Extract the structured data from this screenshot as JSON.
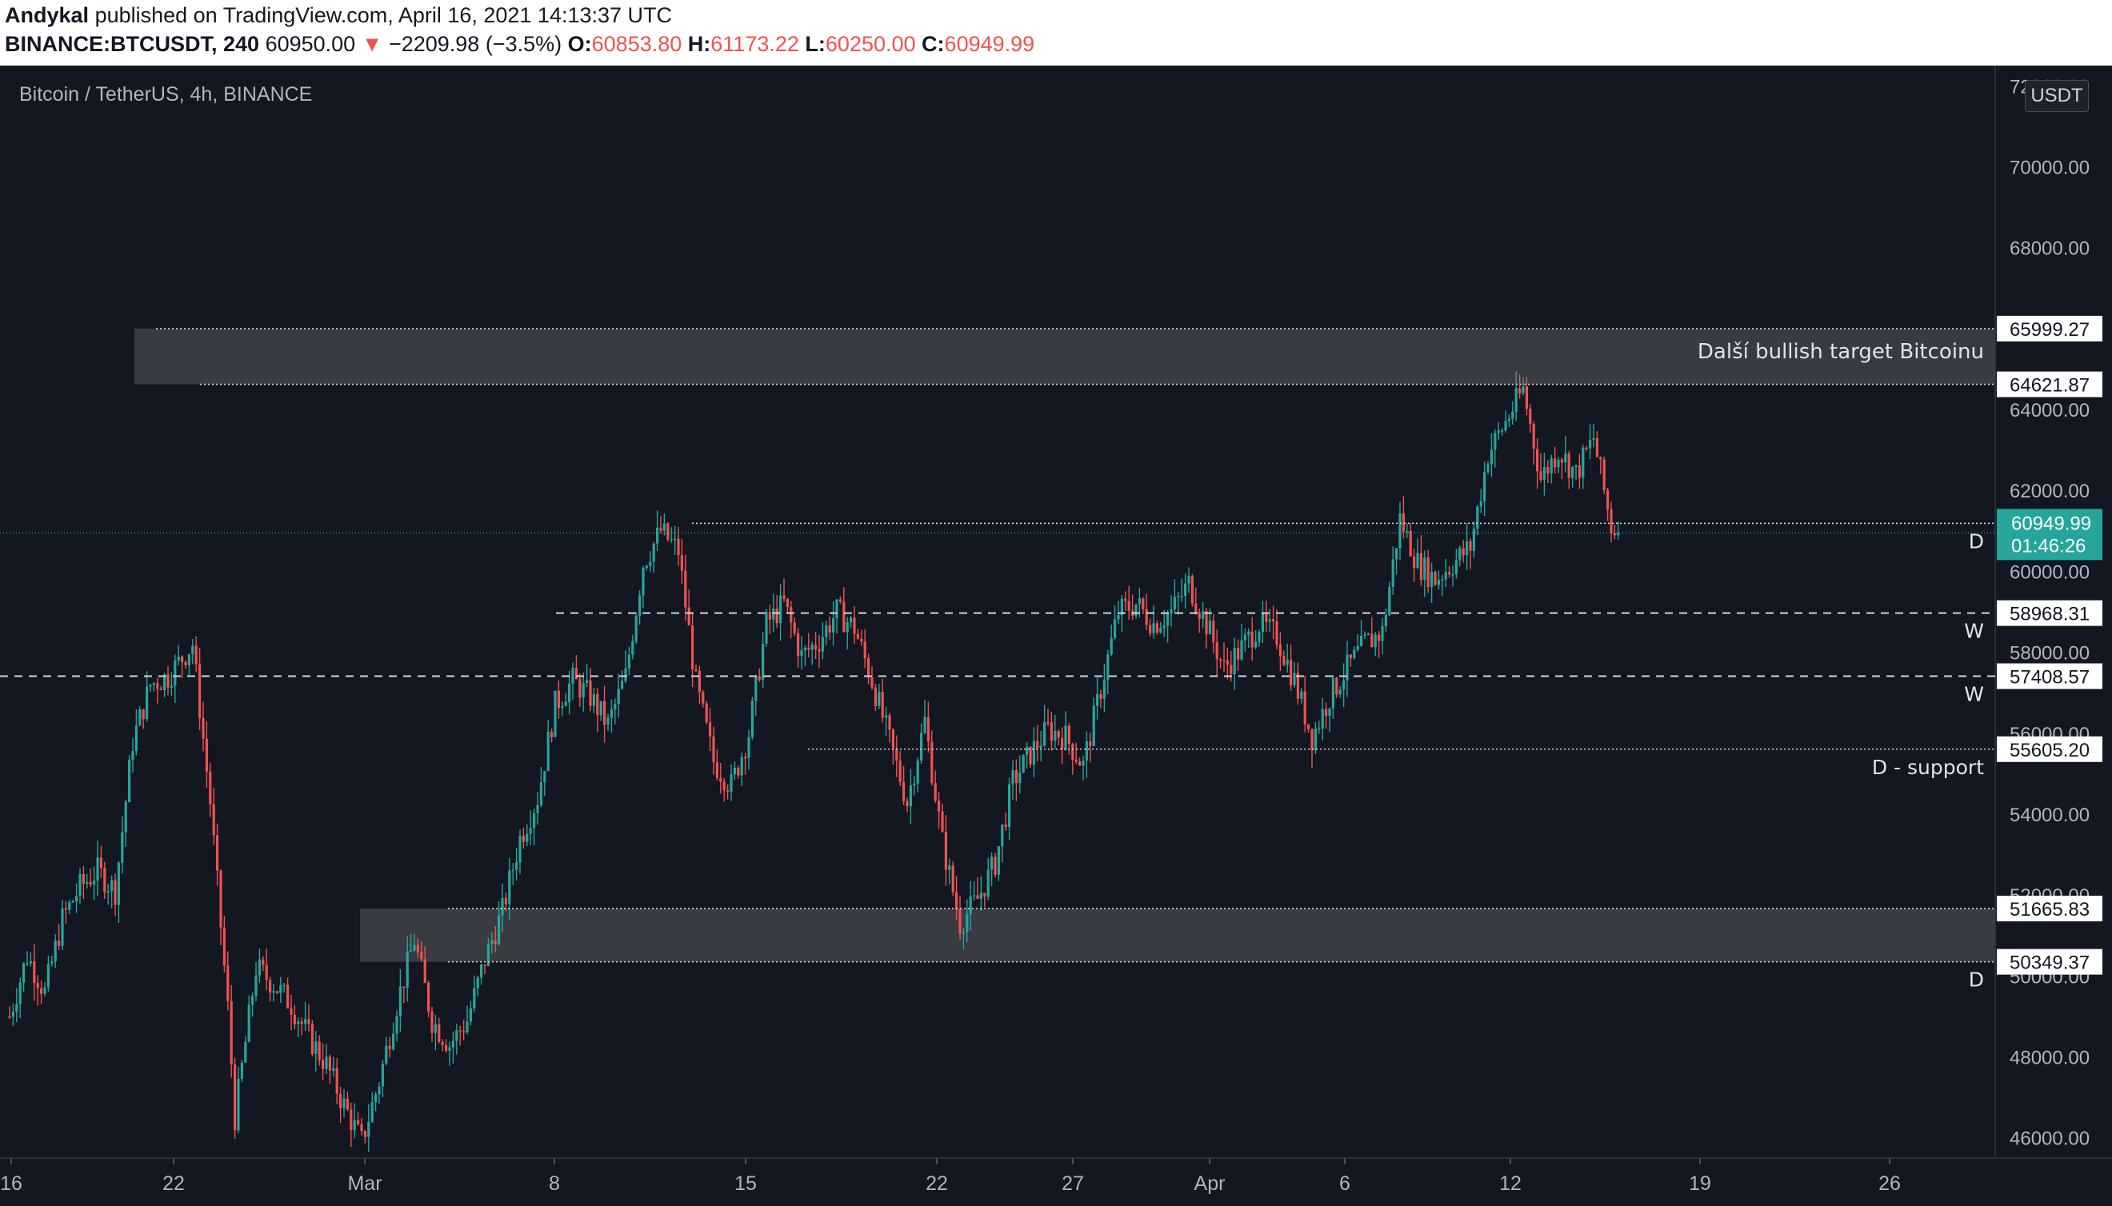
{
  "header": {
    "author": "Andykal",
    "published_text": "published on TradingView.com, April 16, 2021 14:13:37 UTC",
    "symbol": "BINANCE:BTCUSDT, 240",
    "last": "60950.00",
    "change": "−2209.98 (−3.5%)",
    "o_label": "O:",
    "o": "60853.80",
    "h_label": "H:",
    "h": "61173.22",
    "l_label": "L:",
    "l": "60250.00",
    "c_label": "C:",
    "c": "60949.99"
  },
  "chart": {
    "title": "Bitcoin / TetherUS, 4h, BINANCE",
    "currency_badge": "USDT",
    "countdown": "01:46:26"
  },
  "chart_data": {
    "type": "candlestick",
    "title": "Bitcoin / TetherUS, 4h, BINANCE",
    "y_range": [
      45500,
      72500
    ],
    "y_ticks": [
      "46000.00",
      "48000.00",
      "50000.00",
      "52000.00",
      "54000.00",
      "56000.00",
      "58000.00",
      "60000.00",
      "62000.00",
      "64000.00",
      "66000.00",
      "68000.00",
      "70000.00",
      "72000.00"
    ],
    "x_ticks": [
      "16",
      "22",
      "Mar",
      "8",
      "15",
      "22",
      "27",
      "Apr",
      "6",
      "12",
      "19",
      "26"
    ],
    "colors": {
      "up": "#26a69a",
      "down": "#ef5350",
      "zone": "#3a3d45",
      "line": "#d1d4dc"
    },
    "last_price": 60949.99,
    "zones": [
      {
        "from": 64621.87,
        "to": 65999.27,
        "label": "Další bullish target Bitcoinu"
      },
      {
        "from": 50349.37,
        "to": 51665.83,
        "label": ""
      }
    ],
    "levels": [
      {
        "price": 65999.27,
        "label_text": "65999.27",
        "style": "dotted",
        "tag": ""
      },
      {
        "price": 64621.87,
        "label_text": "64621.87",
        "style": "dotted",
        "tag": ""
      },
      {
        "price": 61188.39,
        "label_text": "61188.39",
        "style": "dotted",
        "tag": "D"
      },
      {
        "price": 58968.31,
        "label_text": "58968.31",
        "style": "dashed",
        "tag": "W"
      },
      {
        "price": 57408.57,
        "label_text": "57408.57",
        "style": "dashed",
        "tag": "W"
      },
      {
        "price": 55605.2,
        "label_text": "55605.20",
        "style": "dotted",
        "tag": "D - support"
      },
      {
        "price": 51665.83,
        "label_text": "51665.83",
        "style": "dotted",
        "tag": ""
      },
      {
        "price": 50349.37,
        "label_text": "50349.37",
        "style": "dotted",
        "tag": "D"
      }
    ],
    "price_path": [
      [
        0,
        49000
      ],
      [
        5,
        50500
      ],
      [
        10,
        49600
      ],
      [
        15,
        51400
      ],
      [
        20,
        52200
      ],
      [
        25,
        52600
      ],
      [
        30,
        52100
      ],
      [
        35,
        55800
      ],
      [
        40,
        57200
      ],
      [
        45,
        57400
      ],
      [
        52,
        58200
      ],
      [
        57,
        54300
      ],
      [
        62,
        49200
      ],
      [
        64,
        46500
      ],
      [
        70,
        50200
      ],
      [
        75,
        49800
      ],
      [
        80,
        49300
      ],
      [
        85,
        48500
      ],
      [
        90,
        47800
      ],
      [
        95,
        46800
      ],
      [
        100,
        45900
      ],
      [
        105,
        47400
      ],
      [
        110,
        49300
      ],
      [
        115,
        50900
      ],
      [
        120,
        48900
      ],
      [
        125,
        48300
      ],
      [
        130,
        48900
      ],
      [
        135,
        50400
      ],
      [
        140,
        51600
      ],
      [
        145,
        53400
      ],
      [
        150,
        54400
      ],
      [
        155,
        56700
      ],
      [
        160,
        57300
      ],
      [
        165,
        56900
      ],
      [
        170,
        56200
      ],
      [
        175,
        57400
      ],
      [
        180,
        60200
      ],
      [
        185,
        61000
      ],
      [
        190,
        60500
      ],
      [
        195,
        57200
      ],
      [
        200,
        55300
      ],
      [
        205,
        54700
      ],
      [
        210,
        56000
      ],
      [
        215,
        58700
      ],
      [
        220,
        59200
      ],
      [
        225,
        57900
      ],
      [
        230,
        58300
      ],
      [
        235,
        59000
      ],
      [
        240,
        58600
      ],
      [
        245,
        57300
      ],
      [
        250,
        55800
      ],
      [
        255,
        54300
      ],
      [
        260,
        56300
      ],
      [
        265,
        53300
      ],
      [
        270,
        51300
      ],
      [
        275,
        51900
      ],
      [
        280,
        52800
      ],
      [
        285,
        54800
      ],
      [
        290,
        55500
      ],
      [
        295,
        56100
      ],
      [
        300,
        55900
      ],
      [
        305,
        55200
      ],
      [
        310,
        57100
      ],
      [
        315,
        59000
      ],
      [
        320,
        59200
      ],
      [
        325,
        58700
      ],
      [
        330,
        59000
      ],
      [
        335,
        59700
      ],
      [
        340,
        58700
      ],
      [
        345,
        57600
      ],
      [
        350,
        58100
      ],
      [
        355,
        58700
      ],
      [
        360,
        58400
      ],
      [
        365,
        57300
      ],
      [
        370,
        55900
      ],
      [
        375,
        56900
      ],
      [
        380,
        57600
      ],
      [
        385,
        58200
      ],
      [
        390,
        58500
      ],
      [
        395,
        61300
      ],
      [
        400,
        60200
      ],
      [
        405,
        59800
      ],
      [
        410,
        60200
      ],
      [
        415,
        60600
      ],
      [
        420,
        62900
      ],
      [
        425,
        63700
      ],
      [
        430,
        64500
      ],
      [
        435,
        62300
      ],
      [
        440,
        63000
      ],
      [
        445,
        62400
      ],
      [
        450,
        63300
      ],
      [
        455,
        61100
      ],
      [
        457,
        60950
      ]
    ]
  }
}
